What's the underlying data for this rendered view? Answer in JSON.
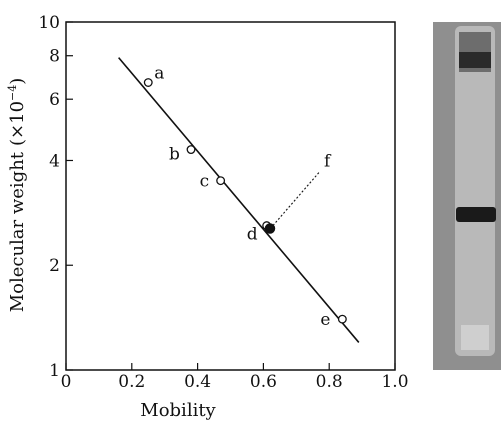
{
  "chart_data": {
    "type": "scatter",
    "xlabel": "Mobility",
    "ylabel_main": "Molecular  weight",
    "ylabel_unit": "(×10",
    "ylabel_exp": "−4",
    "ylabel_close": ")",
    "xlim": [
      0,
      1.0
    ],
    "ylim": [
      1,
      10
    ],
    "yscale": "log",
    "x_ticks": [
      0,
      0.2,
      0.4,
      0.6,
      0.8,
      1.0
    ],
    "x_tick_labels": [
      "0",
      "0.2",
      "0.4",
      "0.6",
      "0.8",
      "1.0"
    ],
    "y_ticks": [
      1,
      2,
      4,
      6,
      8,
      10
    ],
    "y_tick_labels": [
      "1",
      "2",
      "4",
      "6",
      "8",
      "10"
    ],
    "grid": false,
    "points": [
      {
        "label": "a",
        "x": 0.25,
        "y": 6.7,
        "filled": false
      },
      {
        "label": "b",
        "x": 0.38,
        "y": 4.3,
        "filled": false
      },
      {
        "label": "c",
        "x": 0.47,
        "y": 3.5,
        "filled": false
      },
      {
        "label": "d",
        "x": 0.61,
        "y": 2.6,
        "filled": false
      },
      {
        "label": "e",
        "x": 0.84,
        "y": 1.4,
        "filled": false
      },
      {
        "label": "f",
        "x": 0.62,
        "y": 2.55,
        "filled": true
      }
    ],
    "fit_line": {
      "x": [
        0.16,
        0.89
      ],
      "y": [
        7.9,
        1.2
      ]
    }
  },
  "gel_photo": {
    "band_color": "#1a1a1a",
    "tube_color": "#b9b9b9"
  }
}
